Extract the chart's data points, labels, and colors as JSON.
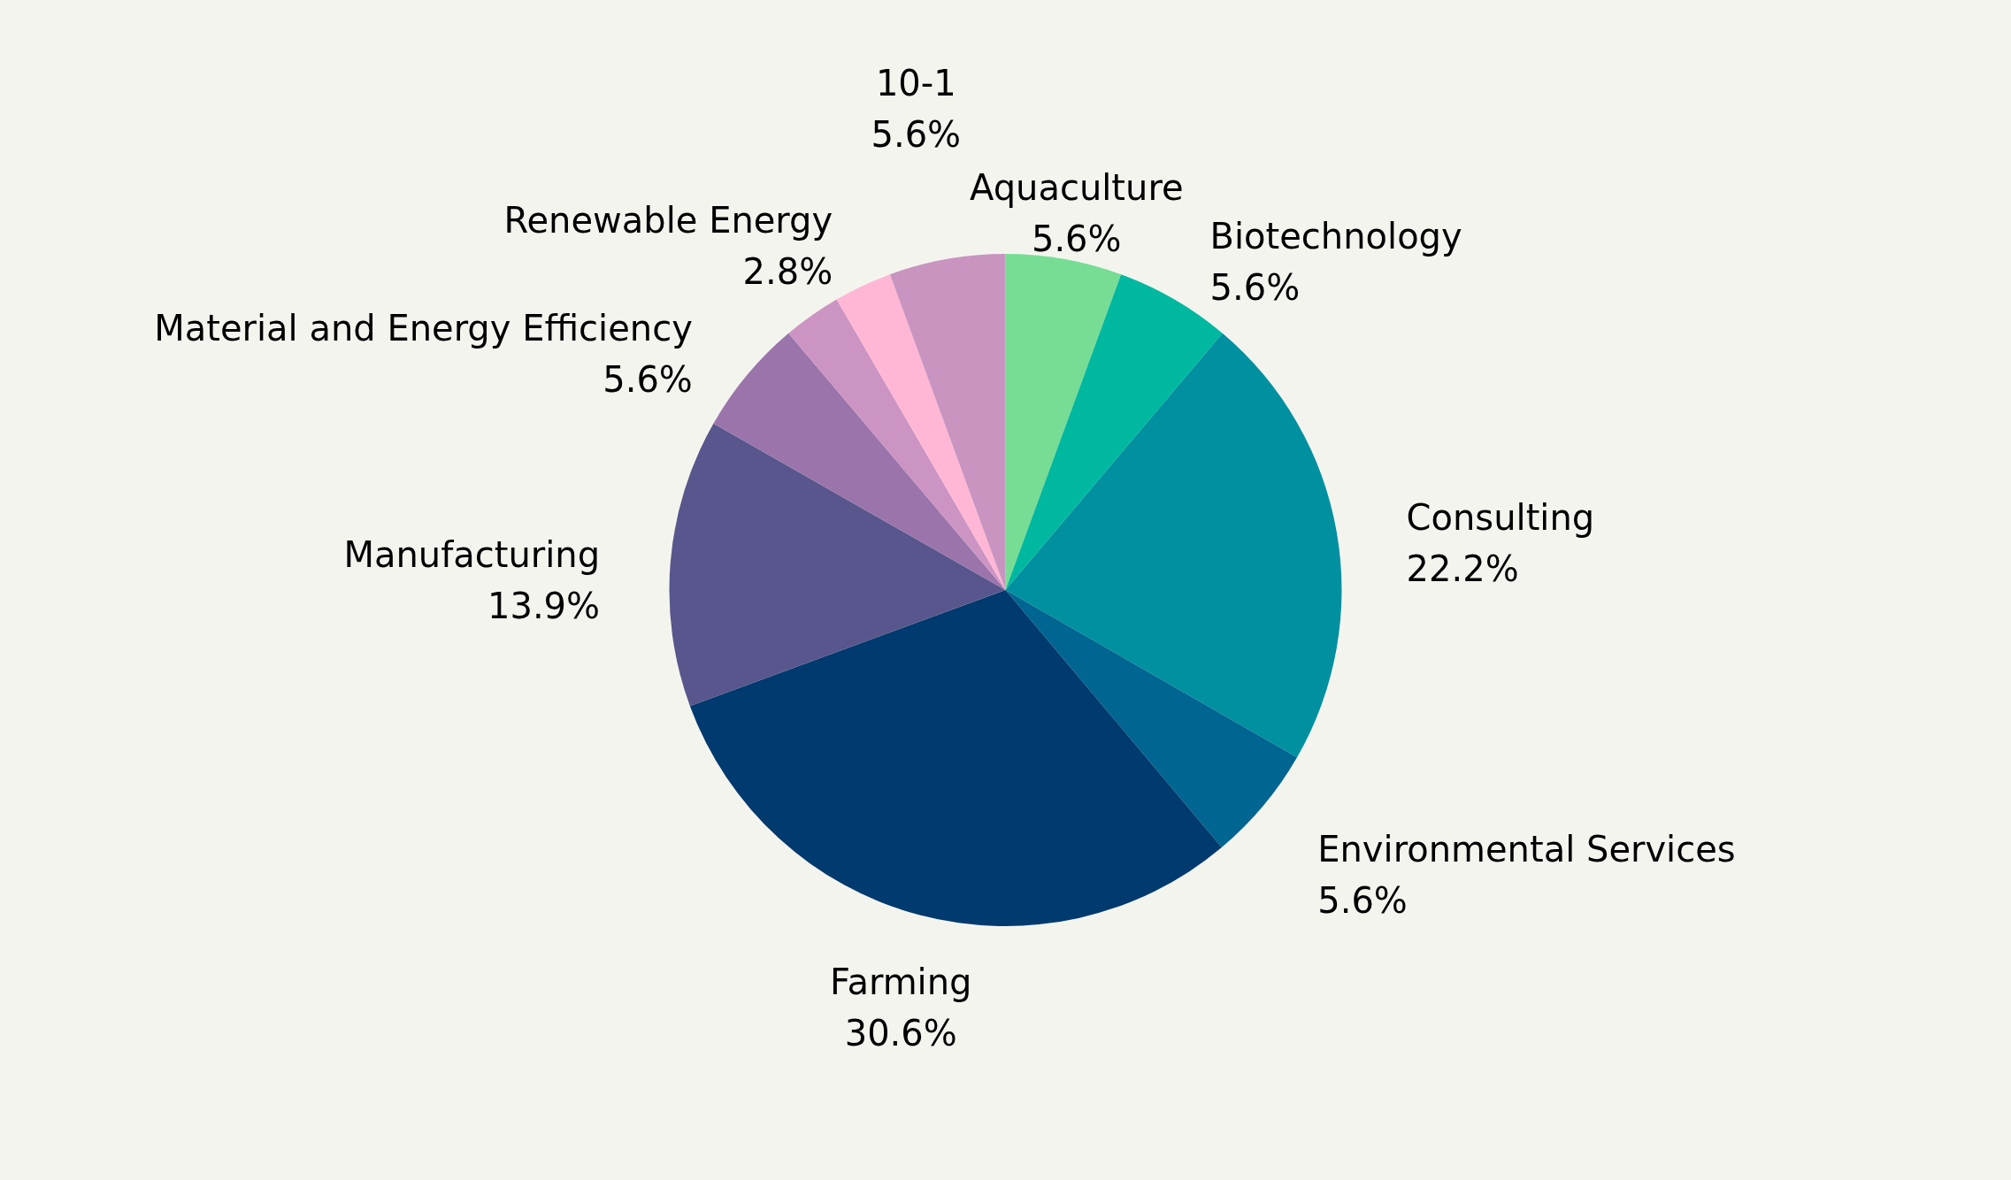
{
  "chart_data": {
    "type": "pie",
    "categories": [
      "Aquaculture",
      "Biotechnology",
      "Consulting",
      "Environmental Services",
      "Farming",
      "Manufacturing",
      "Material and Energy Efficiency",
      null,
      "Renewable Energy",
      "10-1"
    ],
    "values": [
      5.6,
      5.6,
      22.2,
      5.6,
      30.6,
      13.9,
      5.6,
      2.8,
      2.8,
      5.6
    ],
    "value_labels": [
      "5.6%",
      "5.6%",
      "22.2%",
      "5.6%",
      "30.6%",
      "13.9%",
      "5.6%",
      null,
      "2.8%",
      "5.6%"
    ],
    "colors": [
      "#77dd95",
      "#00b8a0",
      "#0090a0",
      "#006590",
      "#003a6e",
      "#58568c",
      "#9a74ab",
      "#cc94c3",
      "#ffb7d5",
      "#c994c0"
    ]
  }
}
